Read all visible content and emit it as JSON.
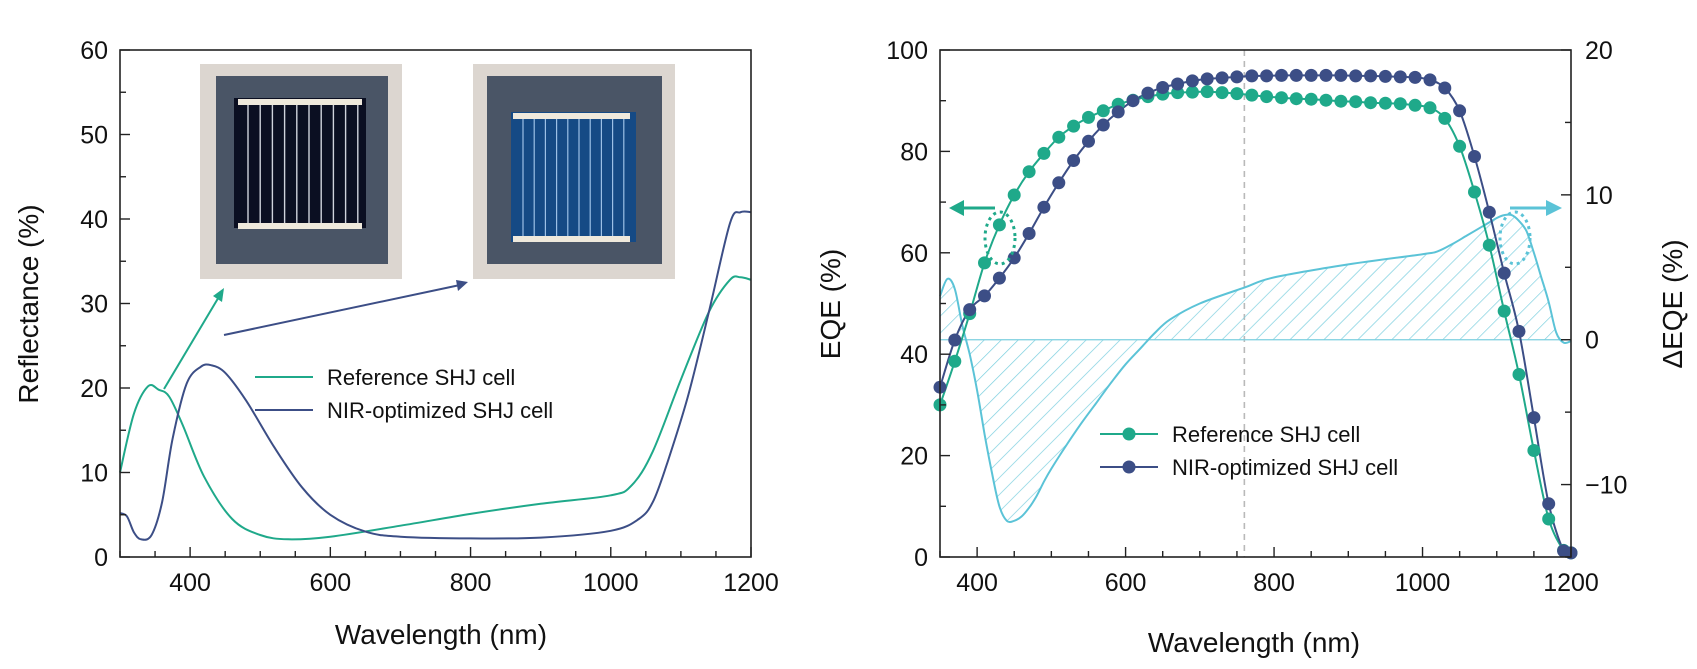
{
  "colors": {
    "reference": "#1fa98a",
    "nir": "#3c4e86",
    "delta": "#5bc3d7",
    "wafer_bg": "#dcd6d0",
    "cell_frame": "#4a5566",
    "ref_cell": "#0b0f22",
    "nir_cell": "#154a85",
    "finger": "#e8e8ee",
    "busbar": "#efe9dc"
  },
  "chart_data": [
    {
      "type": "line",
      "xlabel": "Wavelength (nm)",
      "ylabel": "Reflectance (%)",
      "xlim": [
        300,
        1200
      ],
      "ylim": [
        0,
        60
      ],
      "xticks": [
        "400",
        "600",
        "800",
        "1000",
        "1200"
      ],
      "yticks": [
        "0",
        "10",
        "20",
        "30",
        "40",
        "50",
        "60"
      ],
      "legend_position": "center",
      "insets": [
        "reference-cell-photo",
        "nir-optimized-cell-photo"
      ],
      "series": [
        {
          "name": "Reference SHJ cell",
          "x": [
            300,
            320,
            340,
            355,
            370,
            390,
            420,
            460,
            500,
            540,
            600,
            700,
            800,
            900,
            1000,
            1030,
            1060,
            1100,
            1140,
            1170,
            1185,
            1200
          ],
          "y": [
            10,
            17,
            20.2,
            19.8,
            19,
            15.5,
            9.5,
            4.5,
            2.6,
            2.1,
            2.4,
            3.7,
            5.1,
            6.3,
            7.3,
            8.5,
            12.5,
            21,
            29,
            32.8,
            33.1,
            32.8
          ]
        },
        {
          "name": "NIR-optimized SHJ cell",
          "x": [
            300,
            310,
            320,
            330,
            345,
            360,
            375,
            395,
            415,
            430,
            450,
            480,
            520,
            560,
            600,
            650,
            700,
            800,
            900,
            1000,
            1040,
            1060,
            1080,
            1110,
            1140,
            1170,
            1185,
            1200
          ],
          "y": [
            5.2,
            4.8,
            2.9,
            2.1,
            2.6,
            6.5,
            14,
            20.5,
            22.5,
            22.7,
            21.8,
            18.5,
            13,
            8.2,
            5,
            3,
            2.4,
            2.2,
            2.3,
            3.1,
            4.5,
            6.5,
            11,
            19,
            29,
            39.5,
            40.8,
            40.8
          ]
        }
      ]
    },
    {
      "type": "scatter",
      "xlabel": "Wavelength (nm)",
      "ylabel": "EQE (%)",
      "y2label": "ΔEQE (%)",
      "xlim": [
        350,
        1200
      ],
      "ylim": [
        0,
        100
      ],
      "y2lim": [
        -15,
        20
      ],
      "xticks": [
        "400",
        "600",
        "800",
        "1000",
        "1200"
      ],
      "yticks": [
        "0",
        "20",
        "40",
        "60",
        "80",
        "100"
      ],
      "y2ticks": [
        "−10",
        "0",
        "10",
        "20"
      ],
      "reference_line_x": 760,
      "legend_position": "bottom-center",
      "series": [
        {
          "name": "Reference SHJ cell",
          "axis": "left",
          "x": [
            350,
            370,
            390,
            410,
            430,
            450,
            470,
            490,
            510,
            530,
            550,
            570,
            590,
            610,
            630,
            650,
            670,
            690,
            710,
            730,
            750,
            770,
            790,
            810,
            830,
            850,
            870,
            890,
            910,
            930,
            950,
            970,
            990,
            1010,
            1030,
            1050,
            1070,
            1090,
            1110,
            1130,
            1150,
            1170,
            1190,
            1200
          ],
          "y": [
            30,
            38.6,
            48,
            58,
            65.5,
            71.4,
            76,
            79.6,
            82.8,
            85,
            86.7,
            88,
            89.3,
            90.1,
            90.8,
            91.3,
            91.6,
            91.7,
            91.8,
            91.6,
            91.4,
            91.1,
            90.8,
            90.6,
            90.4,
            90.3,
            90.1,
            89.9,
            89.8,
            89.6,
            89.5,
            89.4,
            89.1,
            88.6,
            86.5,
            81,
            72,
            61.5,
            48.5,
            36,
            21,
            7.5,
            1.3,
            0.8
          ]
        },
        {
          "name": "NIR-optimized SHJ cell",
          "axis": "left",
          "x": [
            350,
            370,
            390,
            410,
            430,
            450,
            470,
            490,
            510,
            530,
            550,
            570,
            590,
            610,
            630,
            650,
            670,
            690,
            710,
            730,
            750,
            770,
            790,
            810,
            830,
            850,
            870,
            890,
            910,
            930,
            950,
            970,
            990,
            1010,
            1030,
            1050,
            1070,
            1090,
            1110,
            1130,
            1150,
            1170,
            1190,
            1200
          ],
          "y": [
            33.5,
            42.8,
            48.8,
            51.5,
            55,
            59,
            63.8,
            69,
            73.8,
            78.2,
            82,
            85.2,
            87.8,
            90,
            91.5,
            92.6,
            93.3,
            93.9,
            94.3,
            94.5,
            94.7,
            94.9,
            94.9,
            95,
            95,
            95,
            95,
            95,
            94.9,
            94.9,
            94.8,
            94.7,
            94.6,
            94.1,
            92.5,
            88,
            79,
            68,
            56,
            44.5,
            27.5,
            10.5,
            1.2,
            0.8
          ]
        },
        {
          "name": "ΔEQE",
          "axis": "right",
          "x": [
            350,
            360,
            370,
            380,
            390,
            400,
            410,
            420,
            430,
            440,
            450,
            460,
            470,
            480,
            490,
            500,
            520,
            540,
            560,
            580,
            600,
            620,
            640,
            660,
            700,
            760,
            800,
            900,
            1000,
            1020,
            1040,
            1060,
            1080,
            1100,
            1110,
            1120,
            1130,
            1140,
            1150,
            1160,
            1170,
            1180,
            1190,
            1200
          ],
          "y": [
            3,
            4.2,
            3.5,
            1,
            -1,
            -3.5,
            -6.5,
            -9.2,
            -11.5,
            -12.5,
            -12.5,
            -12.2,
            -11.6,
            -10.8,
            -9.8,
            -8.9,
            -7.3,
            -5.8,
            -4.4,
            -3,
            -1.7,
            -0.6,
            0.5,
            1.4,
            2.5,
            3.6,
            4.3,
            5.2,
            5.9,
            6.1,
            6.6,
            7.2,
            7.8,
            8.4,
            8.6,
            8.6,
            8.2,
            7.5,
            6,
            4.3,
            2.6,
            0.5,
            -0.2,
            -0.1
          ]
        }
      ]
    }
  ]
}
